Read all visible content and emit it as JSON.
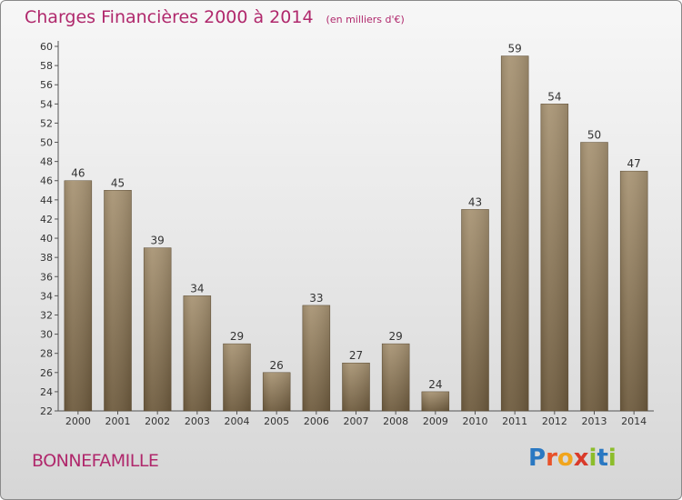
{
  "header": {
    "title": "Charges Financières 2000 à 2014",
    "subtitle": "(en milliers d'€)"
  },
  "footer": {
    "place": "BONNEFAMILLE",
    "logo_letters": [
      {
        "ch": "P",
        "color": "#2a78c2"
      },
      {
        "ch": "r",
        "color": "#e8522a"
      },
      {
        "ch": "o",
        "color": "#f1a51d"
      },
      {
        "ch": "x",
        "color": "#d93a2a"
      },
      {
        "ch": "i",
        "color": "#8cbd2b"
      },
      {
        "ch": "t",
        "color": "#2a78c2"
      },
      {
        "ch": "i",
        "color": "#8cbd2b"
      }
    ]
  },
  "colors": {
    "bar_top": "#a89474",
    "bar_bottom": "#6e5b3e",
    "title": "#b0286c"
  },
  "chart_data": {
    "type": "bar",
    "categories": [
      "2000",
      "2001",
      "2002",
      "2003",
      "2004",
      "2005",
      "2006",
      "2007",
      "2008",
      "2009",
      "2010",
      "2011",
      "2012",
      "2013",
      "2014"
    ],
    "values": [
      46,
      45,
      39,
      34,
      29,
      26,
      33,
      27,
      29,
      24,
      43,
      59,
      54,
      50,
      47
    ],
    "title": "Charges Financières 2000 à 2014",
    "subtitle": "(en milliers d'€)",
    "xlabel": "",
    "ylabel": "",
    "ylim": [
      22,
      60
    ],
    "ytick_step": 2,
    "grid": false,
    "data_labels": true
  }
}
